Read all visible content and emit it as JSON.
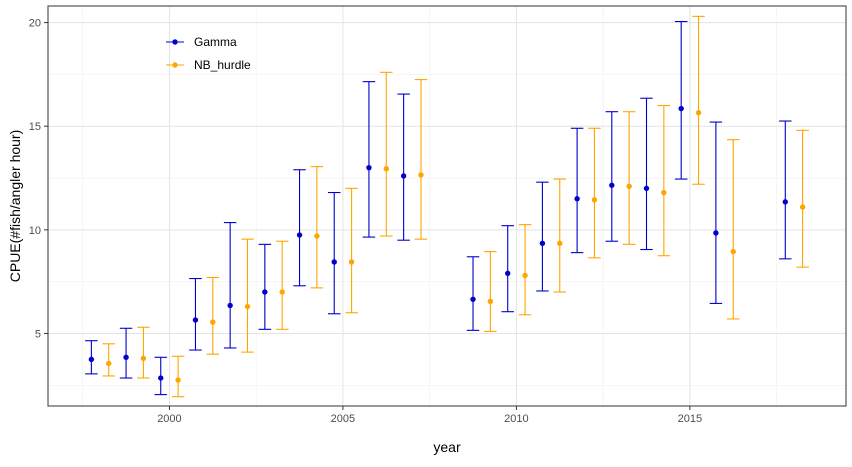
{
  "chart_data": {
    "type": "scatter",
    "title": "",
    "xlabel": "year",
    "ylabel": "CPUE(#fish/angler hour)",
    "xlim": [
      1996.5,
      2019.5
    ],
    "ylim": [
      1.5,
      20.8
    ],
    "x_ticks": [
      {
        "value": 2000,
        "label": "2000"
      },
      {
        "value": 2005,
        "label": "2005"
      },
      {
        "value": 2010,
        "label": "2010"
      },
      {
        "value": 2015,
        "label": "2015"
      }
    ],
    "y_ticks": [
      {
        "value": 5,
        "label": "5"
      },
      {
        "value": 10,
        "label": "10"
      },
      {
        "value": 15,
        "label": "15"
      },
      {
        "value": 20,
        "label": "20"
      }
    ],
    "grid": true,
    "legend_position": "top-left",
    "series": [
      {
        "name": "Gamma",
        "color": "#0000CD",
        "dodge": -0.25,
        "points": [
          {
            "x": 1998,
            "y": 3.75,
            "low": 3.05,
            "high": 4.65
          },
          {
            "x": 1999,
            "y": 3.85,
            "low": 2.85,
            "high": 5.25
          },
          {
            "x": 2000,
            "y": 2.85,
            "low": 2.05,
            "high": 3.85
          },
          {
            "x": 2001,
            "y": 5.65,
            "low": 4.2,
            "high": 7.65
          },
          {
            "x": 2002,
            "y": 6.35,
            "low": 4.3,
            "high": 10.35
          },
          {
            "x": 2003,
            "y": 7.0,
            "low": 5.2,
            "high": 9.3
          },
          {
            "x": 2004,
            "y": 9.75,
            "low": 7.3,
            "high": 12.9
          },
          {
            "x": 2005,
            "y": 8.45,
            "low": 5.95,
            "high": 11.8
          },
          {
            "x": 2006,
            "y": 13.0,
            "low": 9.65,
            "high": 17.15
          },
          {
            "x": 2007,
            "y": 12.6,
            "low": 9.5,
            "high": 16.55
          },
          {
            "x": 2009,
            "y": 6.65,
            "low": 5.15,
            "high": 8.7
          },
          {
            "x": 2010,
            "y": 7.9,
            "low": 6.05,
            "high": 10.2
          },
          {
            "x": 2011,
            "y": 9.35,
            "low": 7.05,
            "high": 12.3
          },
          {
            "x": 2012,
            "y": 11.5,
            "low": 8.9,
            "high": 14.9
          },
          {
            "x": 2013,
            "y": 12.15,
            "low": 9.45,
            "high": 15.7
          },
          {
            "x": 2014,
            "y": 12.0,
            "low": 9.05,
            "high": 16.35
          },
          {
            "x": 2015,
            "y": 15.85,
            "low": 12.45,
            "high": 20.05
          },
          {
            "x": 2016,
            "y": 9.85,
            "low": 6.45,
            "high": 15.2
          },
          {
            "x": 2018,
            "y": 11.35,
            "low": 8.6,
            "high": 15.25
          }
        ]
      },
      {
        "name": "NB_hurdle",
        "color": "#FFA500",
        "dodge": 0.25,
        "points": [
          {
            "x": 1998,
            "y": 3.55,
            "low": 2.95,
            "high": 4.5
          },
          {
            "x": 1999,
            "y": 3.8,
            "low": 2.85,
            "high": 5.3
          },
          {
            "x": 2000,
            "y": 2.75,
            "low": 1.95,
            "high": 3.9
          },
          {
            "x": 2001,
            "y": 5.55,
            "low": 4.0,
            "high": 7.7
          },
          {
            "x": 2002,
            "y": 6.3,
            "low": 4.1,
            "high": 9.55
          },
          {
            "x": 2003,
            "y": 7.0,
            "low": 5.2,
            "high": 9.45
          },
          {
            "x": 2004,
            "y": 9.7,
            "low": 7.2,
            "high": 13.05
          },
          {
            "x": 2005,
            "y": 8.45,
            "low": 6.0,
            "high": 12.0
          },
          {
            "x": 2006,
            "y": 12.95,
            "low": 9.7,
            "high": 17.6
          },
          {
            "x": 2007,
            "y": 12.65,
            "low": 9.55,
            "high": 17.25
          },
          {
            "x": 2009,
            "y": 6.55,
            "low": 5.1,
            "high": 8.95
          },
          {
            "x": 2010,
            "y": 7.8,
            "low": 5.9,
            "high": 10.25
          },
          {
            "x": 2011,
            "y": 9.35,
            "low": 7.0,
            "high": 12.45
          },
          {
            "x": 2012,
            "y": 11.45,
            "low": 8.65,
            "high": 14.9
          },
          {
            "x": 2013,
            "y": 12.1,
            "low": 9.3,
            "high": 15.7
          },
          {
            "x": 2014,
            "y": 11.8,
            "low": 8.75,
            "high": 16.0
          },
          {
            "x": 2015,
            "y": 15.65,
            "low": 12.2,
            "high": 20.3
          },
          {
            "x": 2016,
            "y": 8.95,
            "low": 5.7,
            "high": 14.35
          },
          {
            "x": 2018,
            "y": 11.1,
            "low": 8.2,
            "high": 14.8
          }
        ]
      }
    ]
  }
}
